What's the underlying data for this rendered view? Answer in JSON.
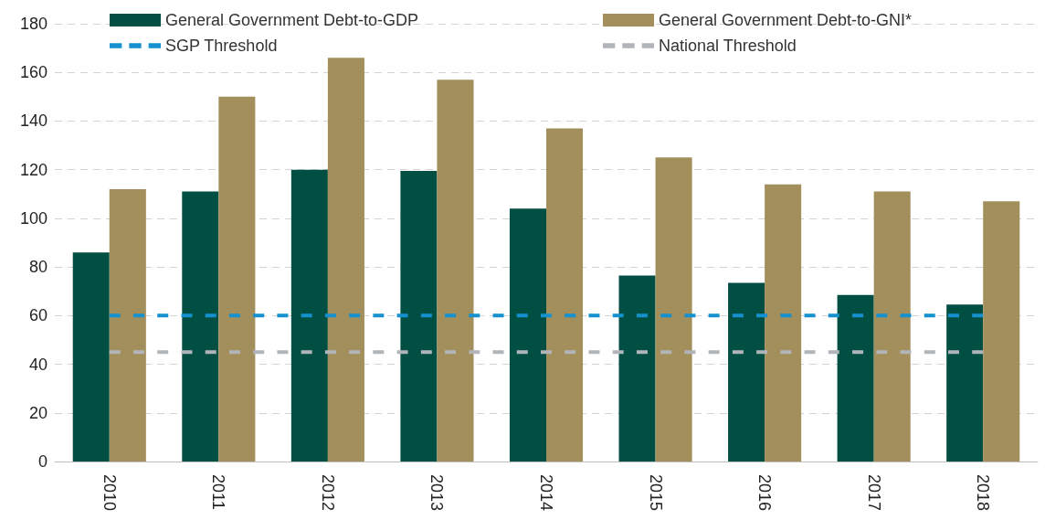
{
  "chart_data": {
    "type": "bar",
    "categories": [
      "2010",
      "2011",
      "2012",
      "2013",
      "2014",
      "2015",
      "2016",
      "2017",
      "2018"
    ],
    "series": [
      {
        "name": "General Government Debt-to-GDP",
        "color": "#004f42",
        "values": [
          86,
          111,
          120,
          119.5,
          104,
          76.5,
          73.5,
          68.5,
          64.5
        ]
      },
      {
        "name": "General Government Debt-to-GNI*",
        "color": "#a38f5b",
        "values": [
          112,
          150,
          166,
          157,
          137,
          125,
          114,
          111,
          107
        ]
      },
      {
        "name": "SGP Threshold",
        "type": "line",
        "line_style": "dashed",
        "color": "#1591d0",
        "values": [
          60,
          60,
          60,
          60,
          60,
          60,
          60,
          60,
          60
        ]
      },
      {
        "name": "National Threshold",
        "type": "line",
        "line_style": "dashed",
        "color": "#b1b5b9",
        "values": [
          45,
          45,
          45,
          45,
          45,
          45,
          45,
          45,
          45
        ]
      }
    ],
    "ylim": [
      0,
      180
    ],
    "yticks": [
      0,
      20,
      40,
      60,
      80,
      100,
      120,
      140,
      160,
      180
    ],
    "grid": "y",
    "legend": "top"
  }
}
